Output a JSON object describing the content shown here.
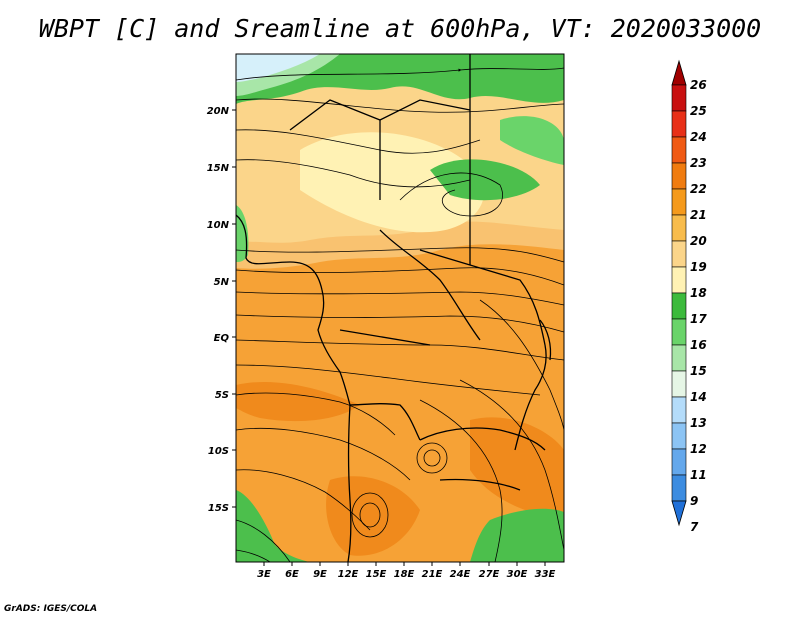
{
  "title": "WBPT [C] and Sreamline at 600hPa, VT: 2020033000",
  "credit": "GrADS: IGES/COLA",
  "latitude_labels": [
    "20N",
    "15N",
    "10N",
    "5N",
    "EQ",
    "5S",
    "10S",
    "15S"
  ],
  "longitude_labels": [
    "3E",
    "6E",
    "9E",
    "12E",
    "15E",
    "18E",
    "21E",
    "24E",
    "27E",
    "30E",
    "33E"
  ],
  "colorbar": {
    "labels": [
      "26",
      "25",
      "24",
      "23",
      "22",
      "21",
      "20",
      "19",
      "18",
      "17",
      "16",
      "15",
      "14",
      "13",
      "12",
      "11",
      "9",
      "7"
    ],
    "colors": [
      "#a00000",
      "#c81010",
      "#e83018",
      "#f05a14",
      "#f07c10",
      "#f59a1c",
      "#f8bc4c",
      "#fbd58a",
      "#fff2b4",
      "#3cba3c",
      "#6ad46a",
      "#a8e6a8",
      "#e6f6e6",
      "#b4dcfa",
      "#8cc4f4",
      "#64a8ec",
      "#3c8ce0",
      "#2070d8"
    ]
  }
}
